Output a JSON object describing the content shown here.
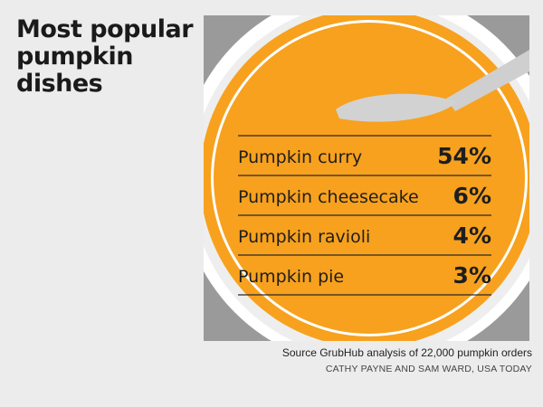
{
  "title": "Most popular pumpkin dishes",
  "source": "Source GrubHub analysis of 22,000 pumpkin orders",
  "credit": "CATHY PAYNE AND SAM WARD, USA TODAY",
  "colors": {
    "soup": "#f7a11e",
    "background_gray": "#9a9a9a",
    "bowl_white": "#ffffff",
    "spoon": "#c8c8c8",
    "text": "#1e1e1e"
  },
  "chart_data": {
    "type": "table",
    "title": "Most popular pumpkin dishes",
    "categories": [
      "Pumpkin curry",
      "Pumpkin cheesecake",
      "Pumpkin ravioli",
      "Pumpkin pie"
    ],
    "values": [
      54,
      6,
      4,
      3
    ],
    "value_labels": [
      "54%",
      "6%",
      "4%",
      "3%"
    ]
  }
}
